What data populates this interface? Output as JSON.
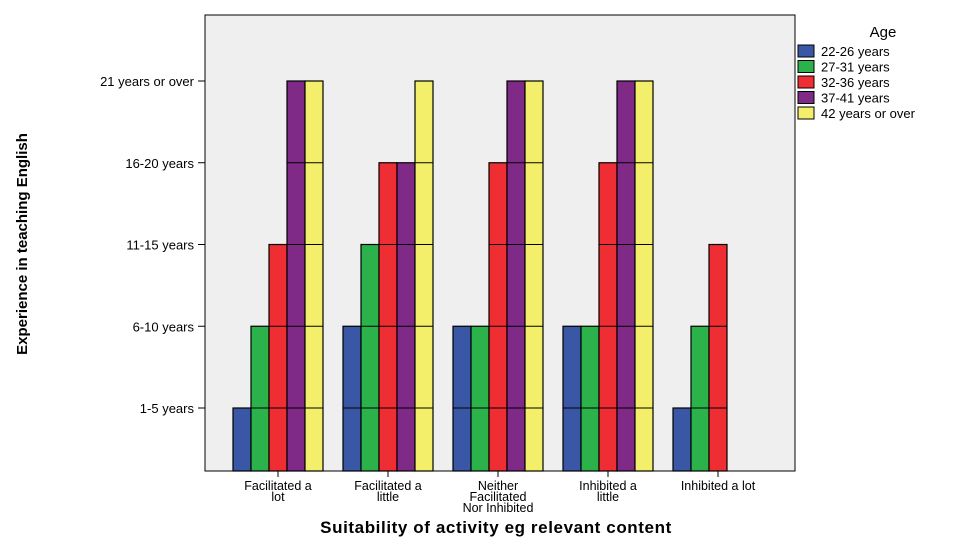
{
  "chart_data": {
    "type": "bar",
    "xlabel": "Suitability of  activity eg relevant content",
    "ylabel": "Experience in teaching English",
    "categories": [
      [
        "Facilitated a",
        "lot"
      ],
      [
        "Facilitated a",
        "little"
      ],
      [
        "Neither",
        "Facilitated",
        "Nor Inhibited"
      ],
      [
        "Inhibited  a",
        "little"
      ],
      [
        "Inhibited a lot"
      ]
    ],
    "y_ticks": [
      "1-5 years",
      "6-10 years",
      "11-15 years",
      "16-20 years",
      "21 years or over"
    ],
    "legend_title": "Age",
    "legend_position": "top-right",
    "grid": false,
    "series": [
      {
        "name": "22-26 years",
        "color": "#3a57a6",
        "values": [
          1,
          2,
          2,
          2,
          1
        ]
      },
      {
        "name": "27-31 years",
        "color": "#2bb24a",
        "values": [
          2,
          3,
          2,
          2,
          2
        ]
      },
      {
        "name": "32-36 years",
        "color": "#ee2e33",
        "values": [
          3,
          4,
          4,
          4,
          3
        ]
      },
      {
        "name": "37-41 years",
        "color": "#7f2a86",
        "values": [
          5,
          4,
          5,
          5,
          null
        ]
      },
      {
        "name": "42 years or over",
        "color": "#f4ef6a",
        "values": [
          5,
          5,
          5,
          5,
          null
        ]
      }
    ]
  }
}
